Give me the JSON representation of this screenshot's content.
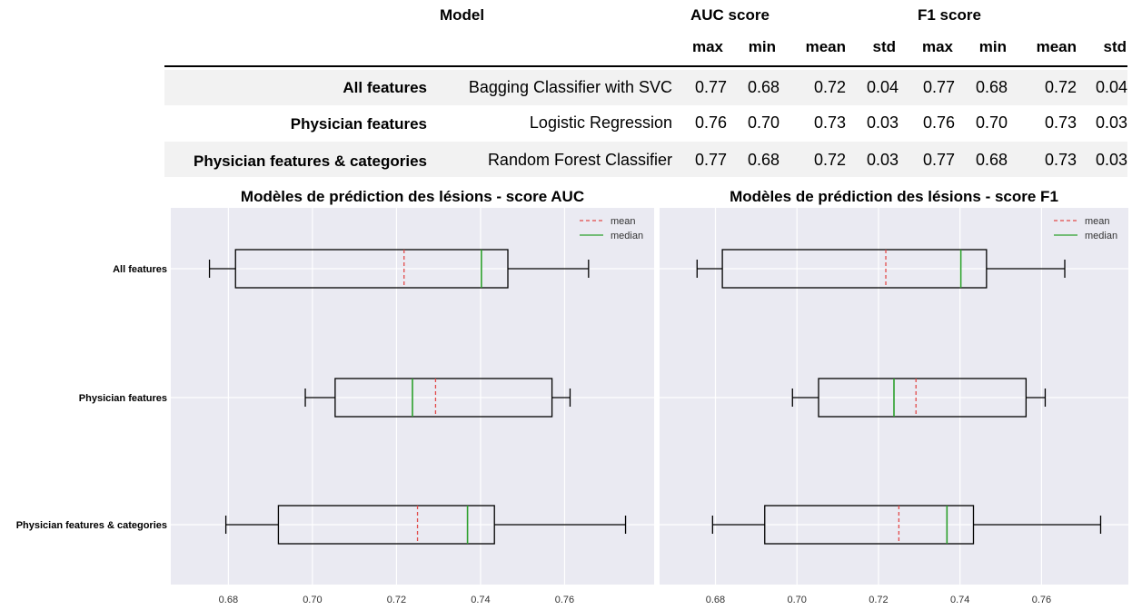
{
  "table": {
    "headers": {
      "model": "Model",
      "auc": "AUC score",
      "f1": "F1 score",
      "sub": [
        "max",
        "min",
        "mean",
        "std",
        "max",
        "min",
        "mean",
        "std"
      ]
    },
    "rows": [
      {
        "label": "All features",
        "model": "Bagging Classifier with SVC",
        "values": [
          "0.77",
          "0.68",
          "0.72",
          "0.04",
          "0.77",
          "0.68",
          "0.72",
          "0.04"
        ]
      },
      {
        "label": "Physician features",
        "model": "Logistic Regression",
        "values": [
          "0.76",
          "0.70",
          "0.73",
          "0.03",
          "0.76",
          "0.70",
          "0.73",
          "0.03"
        ]
      },
      {
        "label": "Physician features & categories",
        "model": "Random Forest Classifier",
        "values": [
          "0.77",
          "0.68",
          "0.72",
          "0.03",
          "0.77",
          "0.68",
          "0.73",
          "0.03"
        ]
      }
    ]
  },
  "chart_data": [
    {
      "type": "boxplot",
      "orientation": "horizontal",
      "title": "Modèles de prédiction des lésions - score AUC",
      "categories": [
        "All features",
        "Physician features",
        "Physician features & categories"
      ],
      "boxes": [
        {
          "whisker_low": 0.6755,
          "q1": 0.6817,
          "median": 0.7402,
          "mean": 0.7218,
          "q3": 0.7465,
          "whisker_high": 0.7657
        },
        {
          "whisker_low": 0.6983,
          "q1": 0.7054,
          "median": 0.7238,
          "mean": 0.7293,
          "q3": 0.757,
          "whisker_high": 0.7613
        },
        {
          "whisker_low": 0.6794,
          "q1": 0.6919,
          "median": 0.7369,
          "mean": 0.725,
          "q3": 0.7433,
          "whisker_high": 0.7745
        }
      ],
      "xticks": [
        "0.68",
        "0.70",
        "0.72",
        "0.74",
        "0.76"
      ],
      "xlim": [
        0.6663,
        0.7813
      ],
      "legend": {
        "position": "top-right",
        "items": [
          {
            "label": "mean",
            "style": "dashed",
            "color": "#e24a4a"
          },
          {
            "label": "median",
            "style": "solid",
            "color": "#2ca02c"
          }
        ]
      },
      "grid": true
    },
    {
      "type": "boxplot",
      "orientation": "horizontal",
      "title": "Modèles de prédiction des lésions - score F1",
      "categories": [
        "All features",
        "Physician features",
        "Physician features & categories"
      ],
      "boxes": [
        {
          "whisker_low": 0.6755,
          "q1": 0.6817,
          "median": 0.7402,
          "mean": 0.7218,
          "q3": 0.7465,
          "whisker_high": 0.7657
        },
        {
          "whisker_low": 0.6989,
          "q1": 0.7053,
          "median": 0.7238,
          "mean": 0.7292,
          "q3": 0.7562,
          "whisker_high": 0.7609
        },
        {
          "whisker_low": 0.6793,
          "q1": 0.6921,
          "median": 0.7368,
          "mean": 0.725,
          "q3": 0.7433,
          "whisker_high": 0.7745
        }
      ],
      "xticks": [
        "0.68",
        "0.70",
        "0.72",
        "0.74",
        "0.76"
      ],
      "xlim": [
        0.6663,
        0.7813
      ],
      "legend": {
        "position": "top-right",
        "items": [
          {
            "label": "mean",
            "style": "dashed",
            "color": "#e24a4a"
          },
          {
            "label": "median",
            "style": "solid",
            "color": "#2ca02c"
          }
        ]
      },
      "grid": true
    }
  ]
}
